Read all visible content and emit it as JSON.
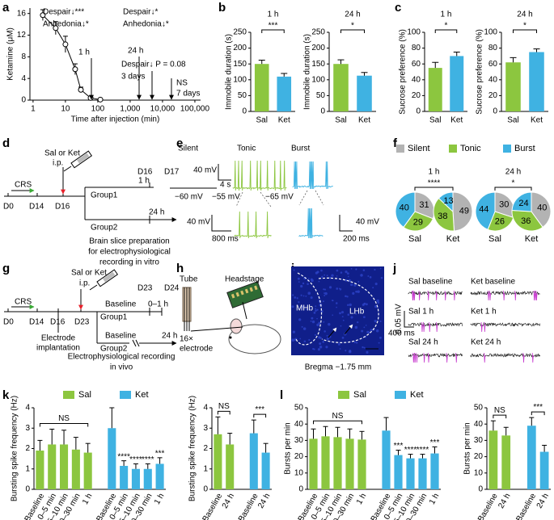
{
  "panels": [
    "a",
    "b",
    "c",
    "d",
    "e",
    "f",
    "g",
    "h",
    "i",
    "j",
    "k",
    "l"
  ],
  "chart_data": [
    {
      "type": "line",
      "ylabel": "Ketamine (μM)",
      "xlabel": "Time after injection (min)",
      "log_x": true,
      "x": [
        2,
        5,
        10,
        20,
        30,
        60,
        120
      ],
      "values": [
        15.7,
        13.3,
        10.3,
        5.7,
        1.9,
        0.4,
        0.1
      ],
      "errors": [
        1,
        1.2,
        1.5,
        1,
        0.5,
        0.2,
        0.1
      ],
      "xlim": [
        0.8,
        150000
      ],
      "xticks": [
        1,
        10,
        100,
        {
          "value": 1000,
          "label": "1,000"
        },
        {
          "value": 10000,
          "label": "10,000"
        },
        {
          "value": 100000,
          "label": "100,000"
        }
      ],
      "ylim": [
        0,
        17
      ],
      "yticks": [
        0,
        4,
        8,
        12,
        16
      ],
      "color": "#000000",
      "annotations": [
        "Despair↓***",
        "Anhedonia↓*",
        "1 h",
        "24 h",
        "Despair↓*",
        "Anhedonia↓*",
        "Despair↓ P = 0.08",
        "3 days",
        "NS",
        "7 days"
      ]
    },
    {
      "type": "bar",
      "title": "1 h",
      "ylabel": "Immobile duration (s)",
      "categories": [
        "Sal",
        "Ket"
      ],
      "values": [
        150,
        110
      ],
      "errors": [
        12,
        10
      ],
      "colors": [
        "#8cc63f",
        "#3fb2e2"
      ],
      "ylim": [
        0,
        250
      ],
      "yticks": [
        0,
        50,
        100,
        150,
        200,
        250
      ],
      "significance": "***"
    },
    {
      "type": "bar",
      "title": "24 h",
      "ylabel": "Immobile duration (s)",
      "categories": [
        "Sal",
        "Ket"
      ],
      "values": [
        150,
        113
      ],
      "errors": [
        13,
        10
      ],
      "colors": [
        "#8cc63f",
        "#3fb2e2"
      ],
      "ylim": [
        0,
        250
      ],
      "yticks": [
        0,
        50,
        100,
        150,
        200,
        250
      ],
      "significance": "*"
    },
    {
      "type": "bar",
      "title": "1 h",
      "ylabel": "Sucrose preference (%)",
      "categories": [
        "Sal",
        "Ket"
      ],
      "values": [
        55,
        70
      ],
      "errors": [
        7,
        5
      ],
      "colors": [
        "#8cc63f",
        "#3fb2e2"
      ],
      "ylim": [
        0,
        100
      ],
      "yticks": [
        0,
        20,
        40,
        60,
        80,
        100
      ],
      "significance": "*"
    },
    {
      "type": "bar",
      "title": "24 h",
      "ylabel": "Sucrose preference (%)",
      "categories": [
        "Sal",
        "Ket"
      ],
      "values": [
        62,
        75
      ],
      "errors": [
        6,
        4
      ],
      "colors": [
        "#8cc63f",
        "#3fb2e2"
      ],
      "ylim": [
        0,
        100
      ],
      "yticks": [
        0,
        20,
        40,
        60,
        80,
        100
      ],
      "significance": "*"
    },
    {
      "type": "pie",
      "categories": [
        "Silent",
        "Tonic",
        "Burst"
      ],
      "colors": [
        "#b3b3b3",
        "#8cc63f",
        "#3fb2e2"
      ],
      "groups": [
        {
          "title": "1 h",
          "significance": "****",
          "pies": [
            {
              "name": "Sal",
              "values": [
                31,
                29,
                40
              ]
            },
            {
              "name": "Ket",
              "values": [
                49,
                38,
                13
              ]
            }
          ]
        },
        {
          "title": "24 h",
          "significance": "*",
          "pies": [
            {
              "name": "Sal",
              "values": [
                30,
                26,
                44
              ]
            },
            {
              "name": "Ket",
              "values": [
                40,
                36,
                24
              ]
            }
          ]
        }
      ]
    },
    {
      "type": "grouped_bar",
      "series": [
        {
          "name": "Sal",
          "color": "#8cc63f"
        },
        {
          "name": "Ket",
          "color": "#3fb2e2"
        }
      ],
      "plots": [
        {
          "ylabel": "Bursting spike frequency (Hz)",
          "ylim": [
            0,
            4
          ],
          "yticks": [
            0,
            1,
            2,
            3,
            4
          ],
          "groups": [
            {
              "categories": [
                "Baseline",
                "0–5 min",
                "5–10 min",
                "20–30 min",
                "1 h"
              ],
              "values": [
                1.9,
                2.2,
                2.2,
                1.95,
                1.8
              ],
              "errors": [
                0.5,
                0.75,
                0.7,
                0.6,
                0.45
              ],
              "bracket": "NS"
            },
            {
              "categories": [
                "Baseline",
                "0–5 min",
                "5–10 min",
                "20–30 min",
                "1 h"
              ],
              "values": [
                3.0,
                1.15,
                1.0,
                1.0,
                1.25
              ],
              "errors": [
                1.0,
                0.25,
                0.25,
                0.25,
                0.3
              ],
              "labels": [
                null,
                "****",
                "****",
                "****",
                "***"
              ]
            }
          ]
        },
        {
          "ylabel": "Bursting spike frequency (Hz)",
          "ylim": [
            0,
            4
          ],
          "yticks": [
            0,
            1,
            2,
            3,
            4
          ],
          "groups": [
            {
              "categories": [
                "Baseline",
                "24 h"
              ],
              "values": [
                2.7,
                2.2
              ],
              "errors": [
                0.85,
                0.55
              ],
              "bracket": "NS"
            },
            {
              "categories": [
                "Baseline",
                "24 h"
              ],
              "values": [
                2.75,
                1.8
              ],
              "errors": [
                0.65,
                0.45
              ],
              "bracket": "***"
            }
          ]
        }
      ]
    },
    {
      "type": "grouped_bar",
      "series": [
        {
          "name": "Sal",
          "color": "#8cc63f"
        },
        {
          "name": "Ket",
          "color": "#3fb2e2"
        }
      ],
      "plots": [
        {
          "ylabel": "Bursts per min",
          "ylim": [
            0,
            50
          ],
          "yticks": [
            0,
            10,
            20,
            30,
            40,
            50
          ],
          "groups": [
            {
              "categories": [
                "Baseline",
                "0–5 min",
                "5–10 min",
                "20–30 min",
                "1 h"
              ],
              "values": [
                31,
                32.5,
                32,
                31,
                30.5
              ],
              "errors": [
                6,
                6,
                6,
                6,
                5
              ],
              "bracket": "NS"
            },
            {
              "categories": [
                "Baseline",
                "0–5 min",
                "5–10 min",
                "20–30 min",
                "1 h"
              ],
              "values": [
                36,
                21,
                19,
                19,
                22
              ],
              "errors": [
                8,
                3,
                2.5,
                2.5,
                4
              ],
              "labels": [
                null,
                "***",
                "****",
                "****",
                "***"
              ]
            }
          ]
        },
        {
          "ylabel": "Bursts per min",
          "ylim": [
            0,
            50
          ],
          "yticks": [
            0,
            10,
            20,
            30,
            40,
            50
          ],
          "groups": [
            {
              "categories": [
                "Baseline",
                "24 h"
              ],
              "values": [
                36,
                33
              ],
              "errors": [
                6,
                5
              ],
              "bracket": "NS"
            },
            {
              "categories": [
                "Baseline",
                "24 h"
              ],
              "values": [
                39,
                23
              ],
              "errors": [
                5,
                4
              ],
              "bracket": "***"
            }
          ]
        }
      ]
    }
  ],
  "diagrams": {
    "d": {
      "drug": "Sal or Ket",
      "route": "i.p.",
      "stress": "CRS",
      "days": [
        "D0",
        "D14",
        "D16",
        "D16",
        "D17"
      ],
      "groups": [
        "Group1",
        "Group2"
      ],
      "times": [
        "1 h",
        "24 h"
      ],
      "caption": [
        "Brain slice preparation",
        "for electrophysiological",
        "recording in vitro"
      ]
    },
    "e": {
      "modes": [
        "Silent",
        "Tonic",
        "Burst"
      ],
      "scales": [
        "40 mV",
        "4 s",
        "40 mV",
        "800 ms",
        "40 mV",
        "200 ms"
      ],
      "potentials": [
        "−60 mV",
        "−55 mV",
        "−65 mV"
      ]
    },
    "g": {
      "drug": "Sal or Ket",
      "route": "i.p.",
      "stress": "CRS",
      "days": [
        "D0",
        "D14",
        "D16",
        "D23",
        "D23",
        "D24"
      ],
      "groups": [
        "Group1",
        "Group2"
      ],
      "baselines": [
        "Baseline",
        "Baseline"
      ],
      "times": [
        "0–1 h",
        "24 h"
      ],
      "surgery": [
        "Electrode",
        "implantation"
      ],
      "caption": [
        "Electrophysiological recording",
        "in vivo"
      ]
    },
    "h": {
      "labels": [
        "Tube",
        "Headstage",
        "16×",
        "electrode"
      ]
    },
    "i": {
      "regions": [
        "MHb",
        "LHb"
      ],
      "caption": "Bregma −1.75 mm"
    },
    "j": {
      "traces": [
        "Sal baseline",
        "Ket baseline",
        "Sal 1 h",
        "Ket 1 h",
        "Sal 24 h",
        "Ket 24 h"
      ],
      "scales": [
        "0.05 mV",
        "400 ms"
      ]
    }
  }
}
